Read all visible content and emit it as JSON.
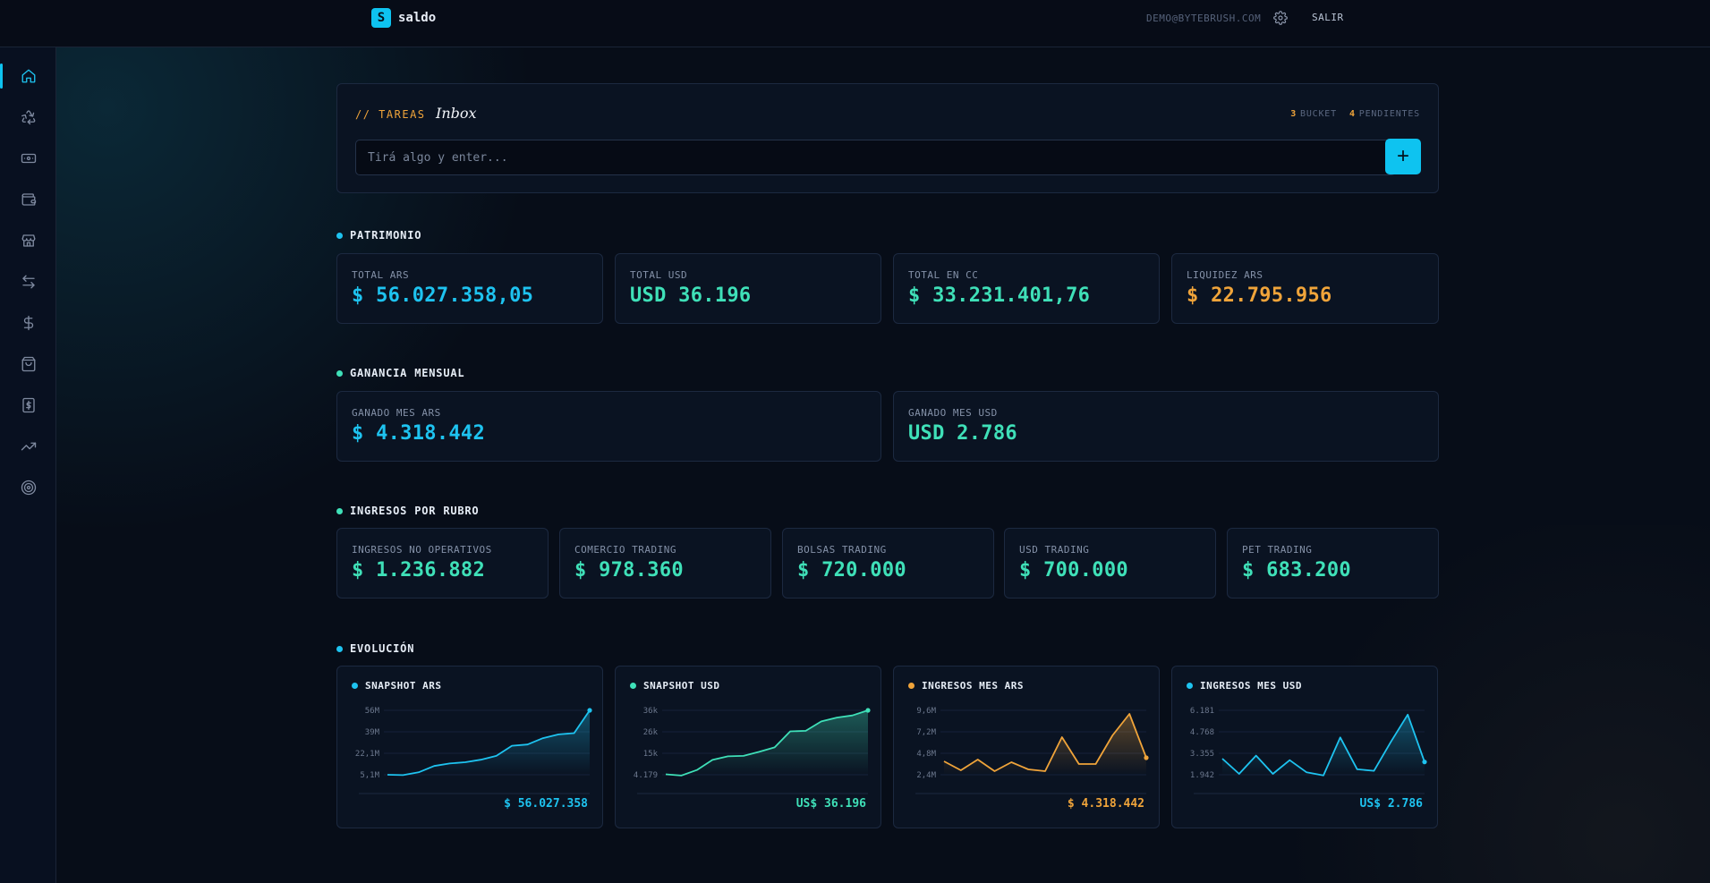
{
  "app": {
    "name": "saldo",
    "logo_letter": "S"
  },
  "header": {
    "email": "DEMO@BYTEBRUSH.COM",
    "logout_label": "SALIR"
  },
  "sidebar": {
    "items": [
      {
        "icon": "home-icon",
        "active": true
      },
      {
        "icon": "recycle-icon",
        "active": false
      },
      {
        "icon": "cash-icon",
        "active": false
      },
      {
        "icon": "wallet-icon",
        "active": false
      },
      {
        "icon": "store-icon",
        "active": false
      },
      {
        "icon": "transfer-icon",
        "active": false
      },
      {
        "icon": "dollar-icon",
        "active": false
      },
      {
        "icon": "shopping-bag-icon",
        "active": false
      },
      {
        "icon": "receipt-icon",
        "active": false
      },
      {
        "icon": "trending-up-icon",
        "active": false
      },
      {
        "icon": "target-icon",
        "active": false
      }
    ]
  },
  "tasks": {
    "kicker": "// TAREAS",
    "title": "Inbox",
    "bucket_count": "3",
    "bucket_label": "BUCKET",
    "pending_count": "4",
    "pending_label": "PENDIENTES",
    "input_placeholder": "Tirá algo y enter...",
    "input_value": ""
  },
  "patrimonio": {
    "title": "PATRIMONIO",
    "cards": [
      {
        "label": "TOTAL ARS",
        "value": "$ 56.027.358,05",
        "color": "#1ec3f0"
      },
      {
        "label": "TOTAL USD",
        "value": "USD 36.196",
        "color": "#3fe0b8"
      },
      {
        "label": "TOTAL EN CC",
        "value": "$ 33.231.401,76",
        "color": "#3fe0b8"
      },
      {
        "label": "LIQUIDEZ ARS",
        "value": "$ 22.795.956",
        "color": "#f0a43a"
      }
    ]
  },
  "ganancia": {
    "title": "GANANCIA MENSUAL",
    "cards": [
      {
        "label": "GANADO MES ARS",
        "value": "$ 4.318.442",
        "color": "#1ec3f0"
      },
      {
        "label": "GANADO MES USD",
        "value": "USD 2.786",
        "color": "#3fe0b8"
      }
    ]
  },
  "ingresos": {
    "title": "INGRESOS POR RUBRO",
    "cards": [
      {
        "label": "INGRESOS NO OPERATIVOS",
        "value": "$ 1.236.882"
      },
      {
        "label": "COMERCIO TRADING",
        "value": "$ 978.360"
      },
      {
        "label": "BOLSAS TRADING",
        "value": "$ 720.000"
      },
      {
        "label": "USD TRADING",
        "value": "$ 700.000"
      },
      {
        "label": "PET TRADING",
        "value": "$ 683.200"
      }
    ]
  },
  "evolucion": {
    "title": "EVOLUCIÓN",
    "charts": [
      {
        "title": "SNAPSHOT ARS",
        "total": "$ 56.027.358",
        "color": "#1ec3f0"
      },
      {
        "title": "SNAPSHOT USD",
        "total": "US$ 36.196",
        "color": "#3fe0b8"
      },
      {
        "title": "INGRESOS MES ARS",
        "total": "$ 4.318.442",
        "color": "#f0a43a"
      },
      {
        "title": "INGRESOS MES USD",
        "total": "US$ 2.786",
        "color": "#1ec3f0"
      }
    ]
  },
  "chart_data": [
    {
      "type": "area",
      "title": "SNAPSHOT ARS",
      "ticks": [
        "56M",
        "39M",
        "22,1M",
        "5,1M"
      ],
      "ylim": [
        5.1,
        56
      ],
      "values": [
        5.1,
        4.8,
        7,
        12,
        14,
        15,
        17,
        20,
        28,
        29,
        34,
        37,
        38,
        56
      ]
    },
    {
      "type": "area",
      "title": "SNAPSHOT USD",
      "ticks": [
        "36k",
        "26k",
        "15k",
        "4.179"
      ],
      "ylim": [
        4.179,
        36
      ],
      "values": [
        4.4,
        3.8,
        6.5,
        11.5,
        13.3,
        13.5,
        15.5,
        17.7,
        25.6,
        25.9,
        30.5,
        32.4,
        33.5,
        36
      ]
    },
    {
      "type": "area",
      "title": "INGRESOS MES ARS",
      "ticks": [
        "9,6M",
        "7,2M",
        "4,8M",
        "2,4M"
      ],
      "ylim": [
        2.4,
        9.6
      ],
      "values": [
        3.9,
        2.9,
        4.1,
        2.8,
        3.8,
        3.0,
        2.8,
        6.6,
        3.6,
        3.6,
        6.8,
        9.2,
        4.3
      ]
    },
    {
      "type": "area",
      "title": "INGRESOS MES USD",
      "ticks": [
        "6.181",
        "4.768",
        "3.355",
        "1.942"
      ],
      "ylim": [
        1.942,
        6.181
      ],
      "values": [
        3.0,
        2.0,
        3.2,
        2.0,
        2.9,
        2.1,
        1.9,
        4.4,
        2.3,
        2.2,
        4.1,
        5.9,
        2.786
      ]
    }
  ]
}
